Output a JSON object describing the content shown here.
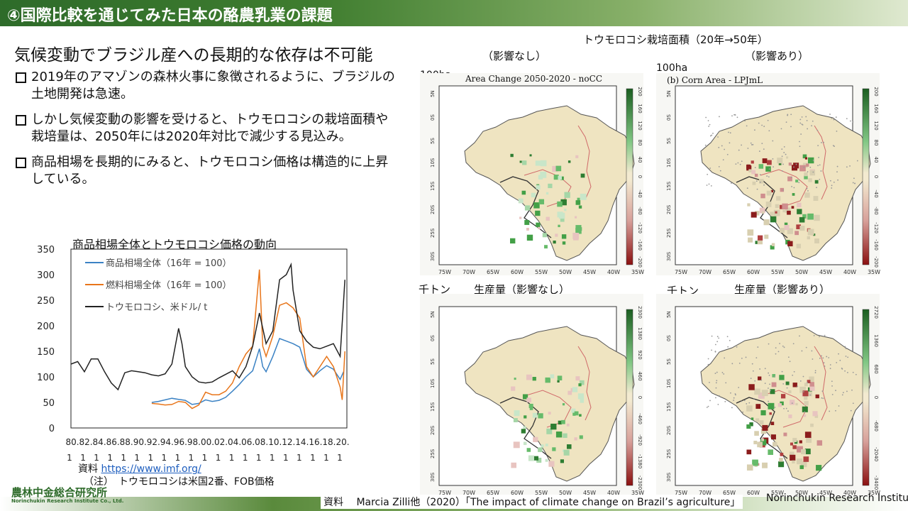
{
  "header": {
    "title": "④国際比較を通じてみた日本の酪農乳業の課題"
  },
  "subtitle": "気候変動でブラジル産への長期的な依存は不可能",
  "bullets": [
    "2019年のアマゾンの森林火事に象徴されるように、ブラジルの土地開発は急速。",
    "しかし気候変動の影響を受けると、トウモロコシの栽培面積や栽培量は、2050年には2020年対比で減少する見込み。",
    "商品相場を長期的にみると、トウモロコシ価格は構造的に上昇している。"
  ],
  "line_chart": {
    "title": "商品相場全体とトウモロコシ価格の動向",
    "source_label": "資料",
    "source_url": "https://www.imf.org/",
    "note": "（注）　トウモロコシは米国2番、FOB価格"
  },
  "chart_data": {
    "type": "line",
    "title": "商品相場全体とトウモロコシ価格の動向",
    "ylim": [
      0,
      350
    ],
    "yticks": [
      0,
      50,
      100,
      150,
      200,
      250,
      300,
      350
    ],
    "xticks": [
      "80.",
      "82.",
      "84.",
      "86.",
      "88.",
      "90.",
      "92.",
      "94.",
      "96.",
      "98.",
      "00.",
      "02.",
      "04.",
      "06.",
      "08.",
      "10.",
      "12.",
      "14.",
      "16.",
      "18.",
      "20."
    ],
    "xticks_line2": "1",
    "xlim": [
      1980,
      2021
    ],
    "legend_position": "top-left",
    "series": [
      {
        "name": "商品相場全体（16年 = 100）",
        "color": "#3b82c4",
        "x": [
          1992,
          1993,
          1994,
          1995,
          1996,
          1997,
          1998,
          1999,
          2000,
          2001,
          2002,
          2003,
          2004,
          2005,
          2006,
          2007,
          2008,
          2008.5,
          2009,
          2010,
          2011,
          2012,
          2013,
          2014,
          2015,
          2016,
          2017,
          2018,
          2019,
          2020,
          2020.5
        ],
        "y": [
          50,
          52,
          55,
          58,
          56,
          54,
          46,
          48,
          55,
          52,
          54,
          60,
          72,
          85,
          100,
          112,
          155,
          120,
          110,
          140,
          175,
          170,
          165,
          158,
          115,
          100,
          112,
          122,
          115,
          95,
          110
        ]
      },
      {
        "name": "燃料相場全体（16年 = 100）",
        "color": "#e8751a",
        "x": [
          1992,
          1993,
          1994,
          1995,
          1996,
          1997,
          1998,
          1999,
          2000,
          2001,
          2002,
          2003,
          2004,
          2005,
          2006,
          2007,
          2008,
          2008.5,
          2009,
          2010,
          2011,
          2012,
          2013,
          2014,
          2015,
          2016,
          2017,
          2018,
          2019,
          2020,
          2020.3,
          2020.7
        ],
        "y": [
          48,
          47,
          45,
          46,
          52,
          50,
          38,
          45,
          70,
          65,
          65,
          72,
          88,
          120,
          145,
          160,
          310,
          160,
          140,
          180,
          240,
          245,
          235,
          215,
          120,
          100,
          120,
          140,
          120,
          80,
          55,
          150
        ]
      },
      {
        "name": "トウモロコシ、米ドル/ t",
        "color": "#222222",
        "x": [
          1980,
          1981,
          1982,
          1983,
          1984,
          1985,
          1986,
          1987,
          1988,
          1989,
          1990,
          1991,
          1992,
          1993,
          1994,
          1995,
          1996,
          1996.5,
          1997,
          1998,
          1999,
          2000,
          2001,
          2002,
          2003,
          2004,
          2005,
          2006,
          2007,
          2008,
          2009,
          2010,
          2011,
          2012,
          2012.7,
          2013,
          2014,
          2015,
          2016,
          2017,
          2018,
          2019,
          2020,
          2020.7
        ],
        "y": [
          125,
          130,
          110,
          135,
          135,
          110,
          88,
          75,
          108,
          112,
          110,
          108,
          104,
          102,
          106,
          125,
          195,
          165,
          120,
          100,
          90,
          88,
          90,
          98,
          105,
          112,
          98,
          120,
          160,
          225,
          165,
          190,
          290,
          300,
          320,
          270,
          190,
          170,
          158,
          155,
          160,
          165,
          140,
          290
        ]
      }
    ]
  },
  "map_section": {
    "title": "トウモロコシ栽培面積（20年→50年）",
    "no_effect": "（影響なし）",
    "with_effect": "（影響あり）",
    "unit_area": "100ha",
    "unit_production": "千トン",
    "prod_no_effect": "生産量（影響なし）",
    "prod_with_effect": "生産量（影響あり）",
    "panel_titles": [
      "Area Change 2050-2020 - noCC",
      "(b) Corn Area - LPJmL"
    ],
    "lat_labels": [
      "5N",
      "0S",
      "5S",
      "10S",
      "15S",
      "20S",
      "25S",
      "30S"
    ],
    "lon_labels": [
      "75W",
      "70W",
      "65W",
      "60W",
      "55W",
      "50W",
      "45W",
      "40W",
      "35W"
    ],
    "colorbars": [
      {
        "labels": [
          "200",
          "160",
          "120",
          "80",
          "40",
          "0",
          "-40",
          "-80",
          "-120",
          "-160",
          "-200"
        ]
      },
      {
        "labels": [
          "200",
          "160",
          "120",
          "80",
          "40",
          "0",
          "-40",
          "-80",
          "-120",
          "-160",
          "-200"
        ]
      },
      {
        "labels": [
          "2300",
          "1380",
          "920",
          "460",
          "0",
          "-460",
          "-920",
          "-1380",
          "-2300"
        ]
      },
      {
        "labels": [
          "2720",
          "1360",
          "680",
          "0",
          "-680",
          "-2040",
          "-3400"
        ]
      }
    ]
  },
  "footer": {
    "source": "資料　 Marcia Zilli他（2020）「The impact of climate change on Brazil’s agriculture」",
    "org_right": "Norinchukin Research Institute",
    "logo_jp": "農林中金総合研究所",
    "logo_en": "Norinchukin Research Institute Co., Ltd."
  }
}
